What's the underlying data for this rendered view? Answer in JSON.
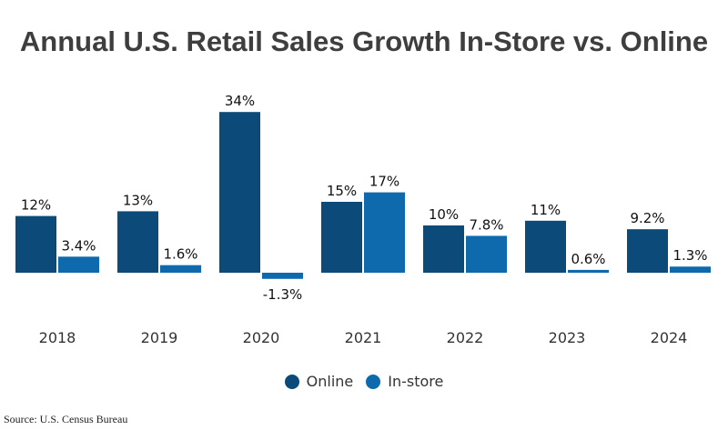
{
  "chart_data": {
    "type": "bar",
    "title": "Annual U.S. Retail Sales Growth In-Store vs. Online",
    "categories": [
      "2018",
      "2019",
      "2020",
      "2021",
      "2022",
      "2023",
      "2024"
    ],
    "series": [
      {
        "name": "Online",
        "color": "#0c4a7a",
        "values": [
          12,
          13,
          34,
          15,
          10,
          11,
          9.2
        ],
        "labels": [
          "12%",
          "13%",
          "34%",
          "15%",
          "10%",
          "11%",
          "9.2%"
        ]
      },
      {
        "name": "In-store",
        "color": "#0f69ad",
        "values": [
          3.4,
          1.6,
          -1.3,
          17,
          7.8,
          0.6,
          1.3
        ],
        "labels": [
          "3.4%",
          "1.6%",
          "-1.3%",
          "17%",
          "7.8%",
          "0.6%",
          "1.3%"
        ]
      }
    ],
    "xlabel": "",
    "ylabel": "",
    "ylim": [
      -1.3,
      34
    ],
    "grid": false,
    "legend_position": "bottom-center"
  },
  "source": "Source: U.S. Census Bureau"
}
